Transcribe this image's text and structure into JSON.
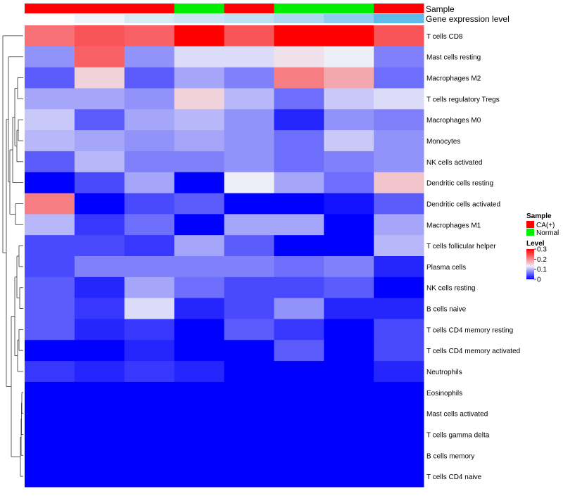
{
  "chart_data": {
    "type": "heatmap",
    "annotations": {
      "sample_label": "Sample",
      "expression_label": "Gene expression level",
      "sample_groups": [
        "CA(+)",
        "CA(+)",
        "CA(+)",
        "Normal",
        "CA(+)",
        "Normal",
        "Normal",
        "CA(+)"
      ],
      "expression_levels": [
        0.0,
        0.02,
        0.08,
        0.12,
        0.15,
        0.19,
        0.4,
        0.55
      ],
      "expression_colors": [
        "#ffffff",
        "#eef6fb",
        "#d8ecf6",
        "#c9e5f4",
        "#bfe0f2",
        "#acd8f0",
        "#8fcdf0",
        "#5fbbea"
      ]
    },
    "rows": [
      "T cells CD8",
      "Mast cells resting",
      "Macrophages M2",
      "T cells regulatory  Tregs",
      "Macrophages M0",
      "Monocytes",
      "NK cells activated",
      "Dendritic cells resting",
      "Dendritic cells activated",
      "Macrophages M1",
      "T cells follicular helper",
      "Plasma cells",
      "NK cells resting",
      "B cells naive",
      "T cells CD4 memory resting",
      "T cells CD4 memory activated",
      "Neutrophils",
      "Eosinophils",
      "Mast cells activated",
      "T cells gamma delta",
      "B cells memory",
      "T cells CD4 naive"
    ],
    "values": [
      [
        0.22,
        0.24,
        0.23,
        0.3,
        0.24,
        0.3,
        0.3,
        0.24
      ],
      [
        0.08,
        0.23,
        0.08,
        0.12,
        0.12,
        0.14,
        0.13,
        0.07
      ],
      [
        0.05,
        0.15,
        0.05,
        0.09,
        0.07,
        0.21,
        0.18,
        0.06
      ],
      [
        0.09,
        0.09,
        0.08,
        0.15,
        0.1,
        0.06,
        0.11,
        0.12
      ],
      [
        0.11,
        0.05,
        0.09,
        0.1,
        0.08,
        0.02,
        0.08,
        0.07
      ],
      [
        0.1,
        0.09,
        0.08,
        0.09,
        0.08,
        0.06,
        0.11,
        0.08
      ],
      [
        0.05,
        0.1,
        0.07,
        0.07,
        0.08,
        0.06,
        0.07,
        0.08
      ],
      [
        0.0,
        0.04,
        0.09,
        0.0,
        0.13,
        0.09,
        0.06,
        0.16
      ],
      [
        0.21,
        0.0,
        0.04,
        0.05,
        0.0,
        0.0,
        0.01,
        0.05
      ],
      [
        0.1,
        0.03,
        0.06,
        0.0,
        0.09,
        0.09,
        0.0,
        0.09
      ],
      [
        0.04,
        0.04,
        0.03,
        0.09,
        0.05,
        0.0,
        0.0,
        0.1
      ],
      [
        0.04,
        0.07,
        0.07,
        0.07,
        0.07,
        0.06,
        0.07,
        0.02
      ],
      [
        0.05,
        0.02,
        0.09,
        0.06,
        0.04,
        0.04,
        0.05,
        0.0
      ],
      [
        0.05,
        0.03,
        0.12,
        0.02,
        0.04,
        0.08,
        0.02,
        0.02
      ],
      [
        0.05,
        0.02,
        0.03,
        0.0,
        0.05,
        0.03,
        0.0,
        0.04
      ],
      [
        0.0,
        0.0,
        0.02,
        0.0,
        0.0,
        0.05,
        0.0,
        0.04
      ],
      [
        0.03,
        0.02,
        0.03,
        0.02,
        0.0,
        0.0,
        0.0,
        0.02
      ],
      [
        0.0,
        0.0,
        0.0,
        0.0,
        0.0,
        0.0,
        0.0,
        0.0
      ],
      [
        0.0,
        0.0,
        0.0,
        0.0,
        0.0,
        0.0,
        0.0,
        0.0
      ],
      [
        0.0,
        0.0,
        0.0,
        0.0,
        0.0,
        0.0,
        0.0,
        0.0
      ],
      [
        0.0,
        0.0,
        0.0,
        0.0,
        0.0,
        0.0,
        0.0,
        0.0
      ],
      [
        0.0,
        0.0,
        0.0,
        0.0,
        0.0,
        0.0,
        0.0,
        0.0
      ]
    ],
    "color_scale": {
      "min": 0,
      "mid": 0.13,
      "max": 0.3,
      "low": "#0000ff",
      "mid_color": "#eeeef8",
      "high": "#ff0000"
    },
    "legend": {
      "sample_title": "Sample",
      "sample_entries": [
        {
          "label": "CA(+)",
          "color": "#ff0000"
        },
        {
          "label": "Normal",
          "color": "#00ee00"
        }
      ],
      "level_title": "Level",
      "level_ticks": [
        {
          "value": 0.3,
          "label": "0.3"
        },
        {
          "value": 0.2,
          "label": "0.2"
        },
        {
          "value": 0.1,
          "label": "0.1"
        },
        {
          "value": 0,
          "label": "0"
        }
      ]
    },
    "dendrogram": "row clustering tree (left side)"
  }
}
